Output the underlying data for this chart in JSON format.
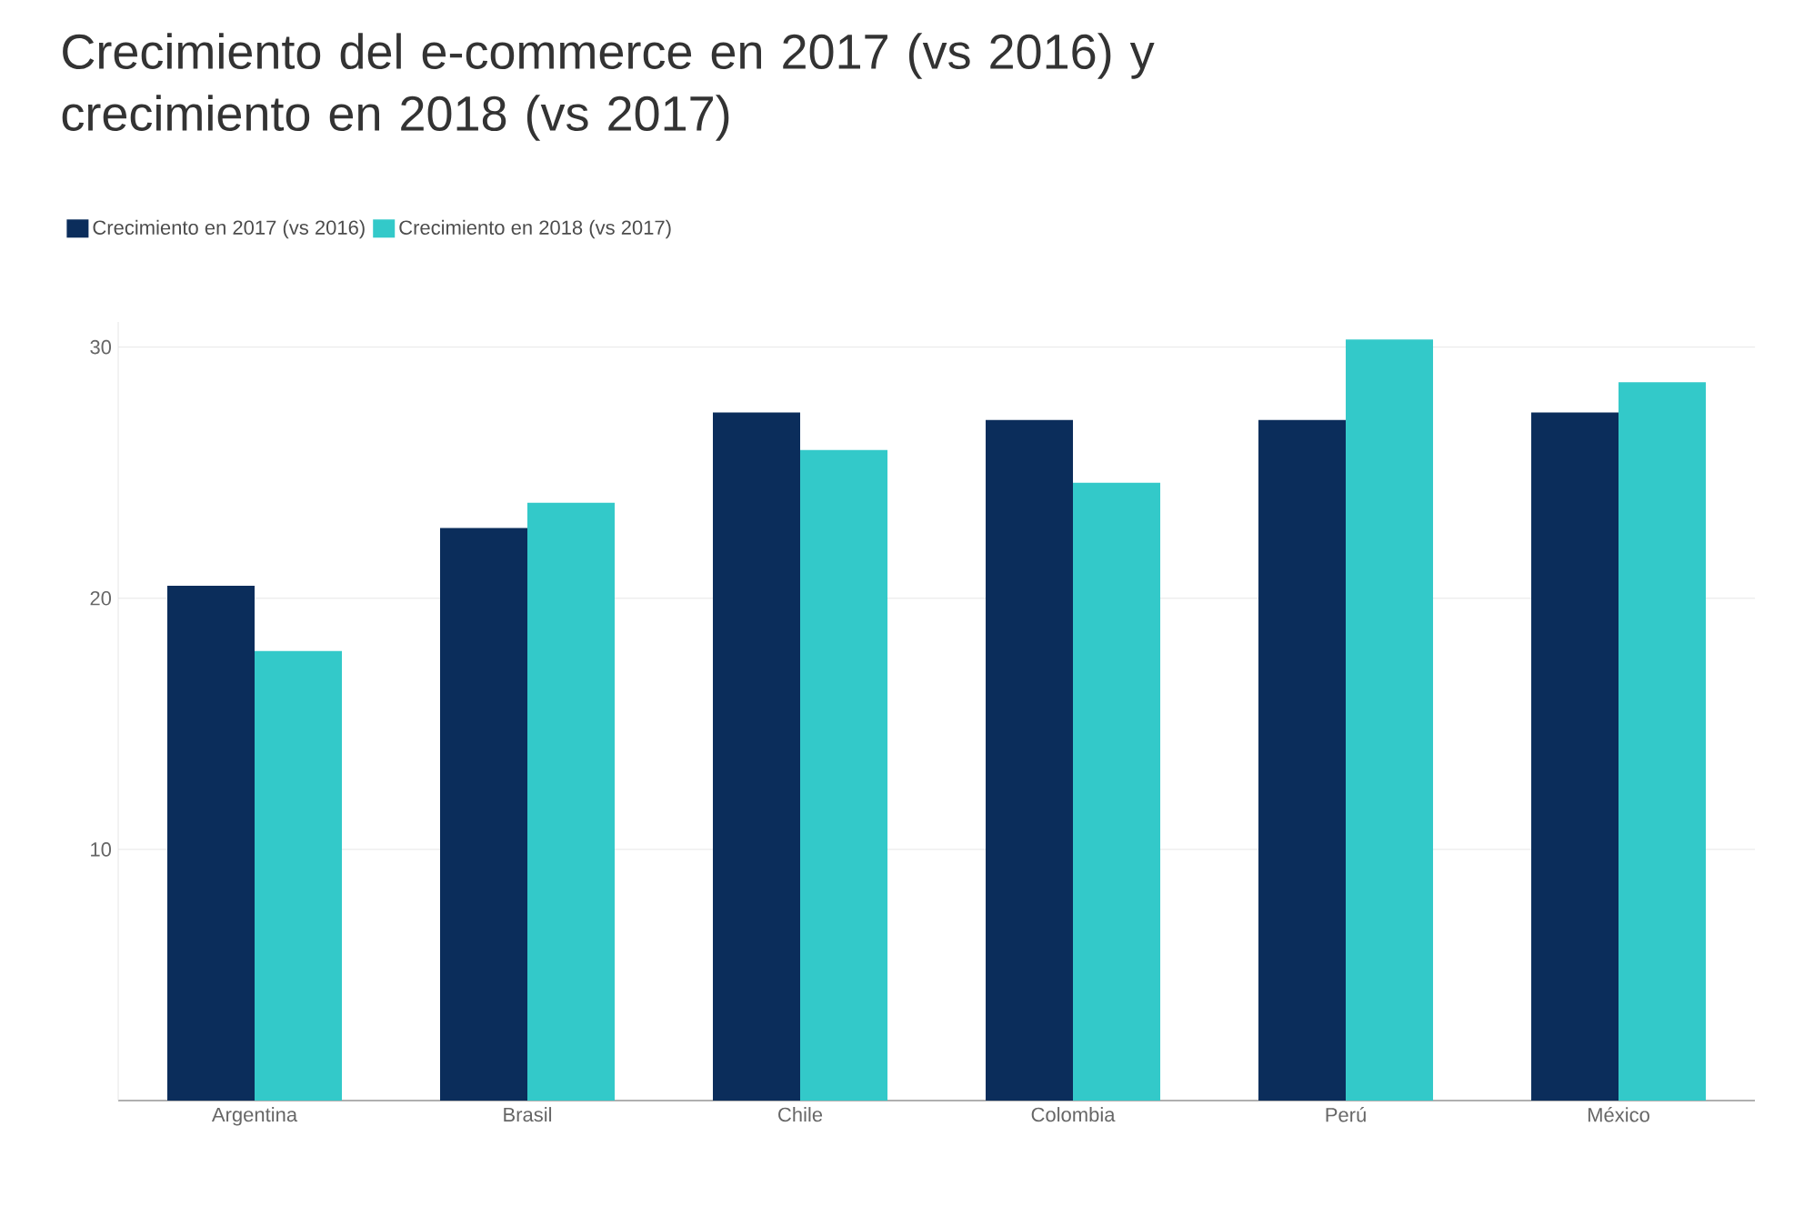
{
  "chart_data": {
    "type": "bar",
    "title": "Crecimiento del e-commerce en 2017 (vs 2016) y crecimiento en 2018 (vs 2017)",
    "categories": [
      "Argentina",
      "Brasil",
      "Chile",
      "Colombia",
      "Perú",
      "México"
    ],
    "series": [
      {
        "name": "Crecimiento en 2017 (vs 2016)",
        "color": "#0b2d5b",
        "values": [
          20.5,
          22.8,
          27.4,
          27.1,
          27.1,
          27.4
        ]
      },
      {
        "name": "Crecimiento en 2018 (vs 2017)",
        "color": "#33c9c9",
        "values": [
          17.9,
          23.8,
          25.9,
          24.6,
          30.3,
          28.6
        ]
      }
    ],
    "ylim": [
      0,
      31
    ],
    "yticks": [
      {
        "value": 0,
        "label": null
      },
      10,
      20,
      30
    ],
    "grid": "y",
    "legend": "top left"
  }
}
